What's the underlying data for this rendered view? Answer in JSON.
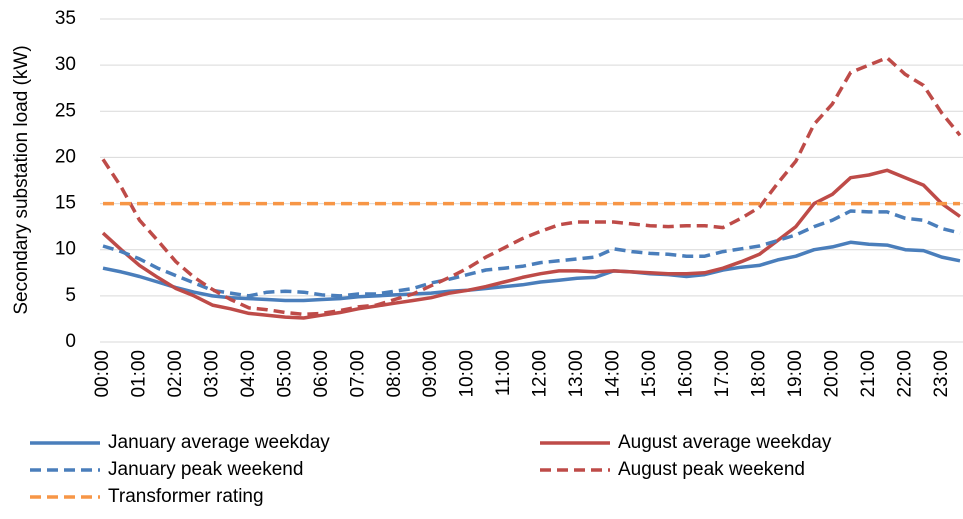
{
  "chart_data": {
    "type": "line",
    "y_label": "Secondary substation load (kW)",
    "categories": [
      "00:00",
      null,
      "01:00",
      null,
      "02:00",
      null,
      "03:00",
      null,
      "04:00",
      null,
      "05:00",
      null,
      "06:00",
      null,
      "07:00",
      null,
      "08:00",
      null,
      "09:00",
      null,
      "10:00",
      null,
      "11:00",
      null,
      "12:00",
      null,
      "13:00",
      null,
      "14:00",
      null,
      "15:00",
      null,
      "16:00",
      null,
      "17:00",
      null,
      "18:00",
      null,
      "19:00",
      null,
      "20:00",
      null,
      "21:00",
      null,
      "22:00",
      null,
      "23:00",
      null
    ],
    "series": [
      {
        "name": "January average weekday",
        "color": "#4a7ebb",
        "dash": false,
        "values": [
          8.0,
          7.6,
          7.1,
          6.5,
          5.9,
          5.4,
          5.0,
          4.8,
          4.7,
          4.6,
          4.5,
          4.5,
          4.6,
          4.7,
          4.9,
          5.0,
          5.1,
          5.2,
          5.3,
          5.5,
          5.6,
          5.8,
          6.0,
          6.2,
          6.5,
          6.7,
          6.9,
          7.0,
          7.7,
          7.6,
          7.4,
          7.3,
          7.1,
          7.3,
          7.8,
          8.1,
          8.3,
          8.9,
          9.3,
          10.0,
          10.3,
          10.8,
          10.6,
          10.5,
          10.0,
          9.9,
          9.2,
          8.8
        ]
      },
      {
        "name": "August average weekday",
        "color": "#be4b48",
        "dash": false,
        "values": [
          11.8,
          10.0,
          8.3,
          7.0,
          5.8,
          5.0,
          4.0,
          3.6,
          3.1,
          2.9,
          2.7,
          2.6,
          2.9,
          3.2,
          3.6,
          3.9,
          4.2,
          4.5,
          4.8,
          5.3,
          5.6,
          6.0,
          6.5,
          7.0,
          7.4,
          7.7,
          7.7,
          7.6,
          7.7,
          7.6,
          7.5,
          7.4,
          7.4,
          7.5,
          8.0,
          8.7,
          9.5,
          11.0,
          12.5,
          15.0,
          16.0,
          17.8,
          18.1,
          18.6,
          17.8,
          17.0,
          15.0,
          13.6
        ]
      },
      {
        "name": "January peak weekend",
        "color": "#4a7ebb",
        "dash": true,
        "values": [
          10.4,
          9.8,
          9.0,
          8.0,
          7.2,
          6.4,
          5.6,
          5.3,
          5.0,
          5.4,
          5.5,
          5.4,
          5.1,
          5.0,
          5.2,
          5.2,
          5.5,
          5.8,
          6.4,
          6.8,
          7.3,
          7.8,
          8.0,
          8.2,
          8.6,
          8.8,
          9.0,
          9.2,
          10.1,
          9.8,
          9.6,
          9.5,
          9.3,
          9.3,
          9.8,
          10.1,
          10.4,
          11.0,
          11.6,
          12.5,
          13.2,
          14.2,
          14.1,
          14.1,
          13.4,
          13.2,
          12.3,
          11.8
        ]
      },
      {
        "name": "August peak weekend",
        "color": "#be4b48",
        "dash": true,
        "values": [
          19.8,
          16.8,
          13.2,
          11.0,
          8.7,
          7.0,
          5.7,
          4.6,
          3.7,
          3.5,
          3.2,
          3.0,
          3.1,
          3.4,
          3.8,
          4.0,
          4.6,
          5.2,
          6.1,
          7.0,
          8.0,
          9.2,
          10.2,
          11.2,
          12.0,
          12.7,
          13.0,
          13.0,
          13.0,
          12.8,
          12.6,
          12.5,
          12.6,
          12.6,
          12.4,
          13.4,
          14.6,
          17.2,
          19.6,
          23.6,
          25.8,
          29.2,
          30.0,
          30.8,
          29.0,
          27.8,
          24.8,
          22.4
        ]
      },
      {
        "name": "Transformer rating",
        "color": "#f79646",
        "dash": true,
        "values": [
          15,
          15,
          15,
          15,
          15,
          15,
          15,
          15,
          15,
          15,
          15,
          15,
          15,
          15,
          15,
          15,
          15,
          15,
          15,
          15,
          15,
          15,
          15,
          15,
          15,
          15,
          15,
          15,
          15,
          15,
          15,
          15,
          15,
          15,
          15,
          15,
          15,
          15,
          15,
          15,
          15,
          15,
          15,
          15,
          15,
          15,
          15,
          15
        ]
      }
    ],
    "ylim": [
      0,
      35
    ],
    "yticks": [
      0,
      5,
      10,
      15,
      20,
      25,
      30,
      35
    ],
    "grid": true
  }
}
